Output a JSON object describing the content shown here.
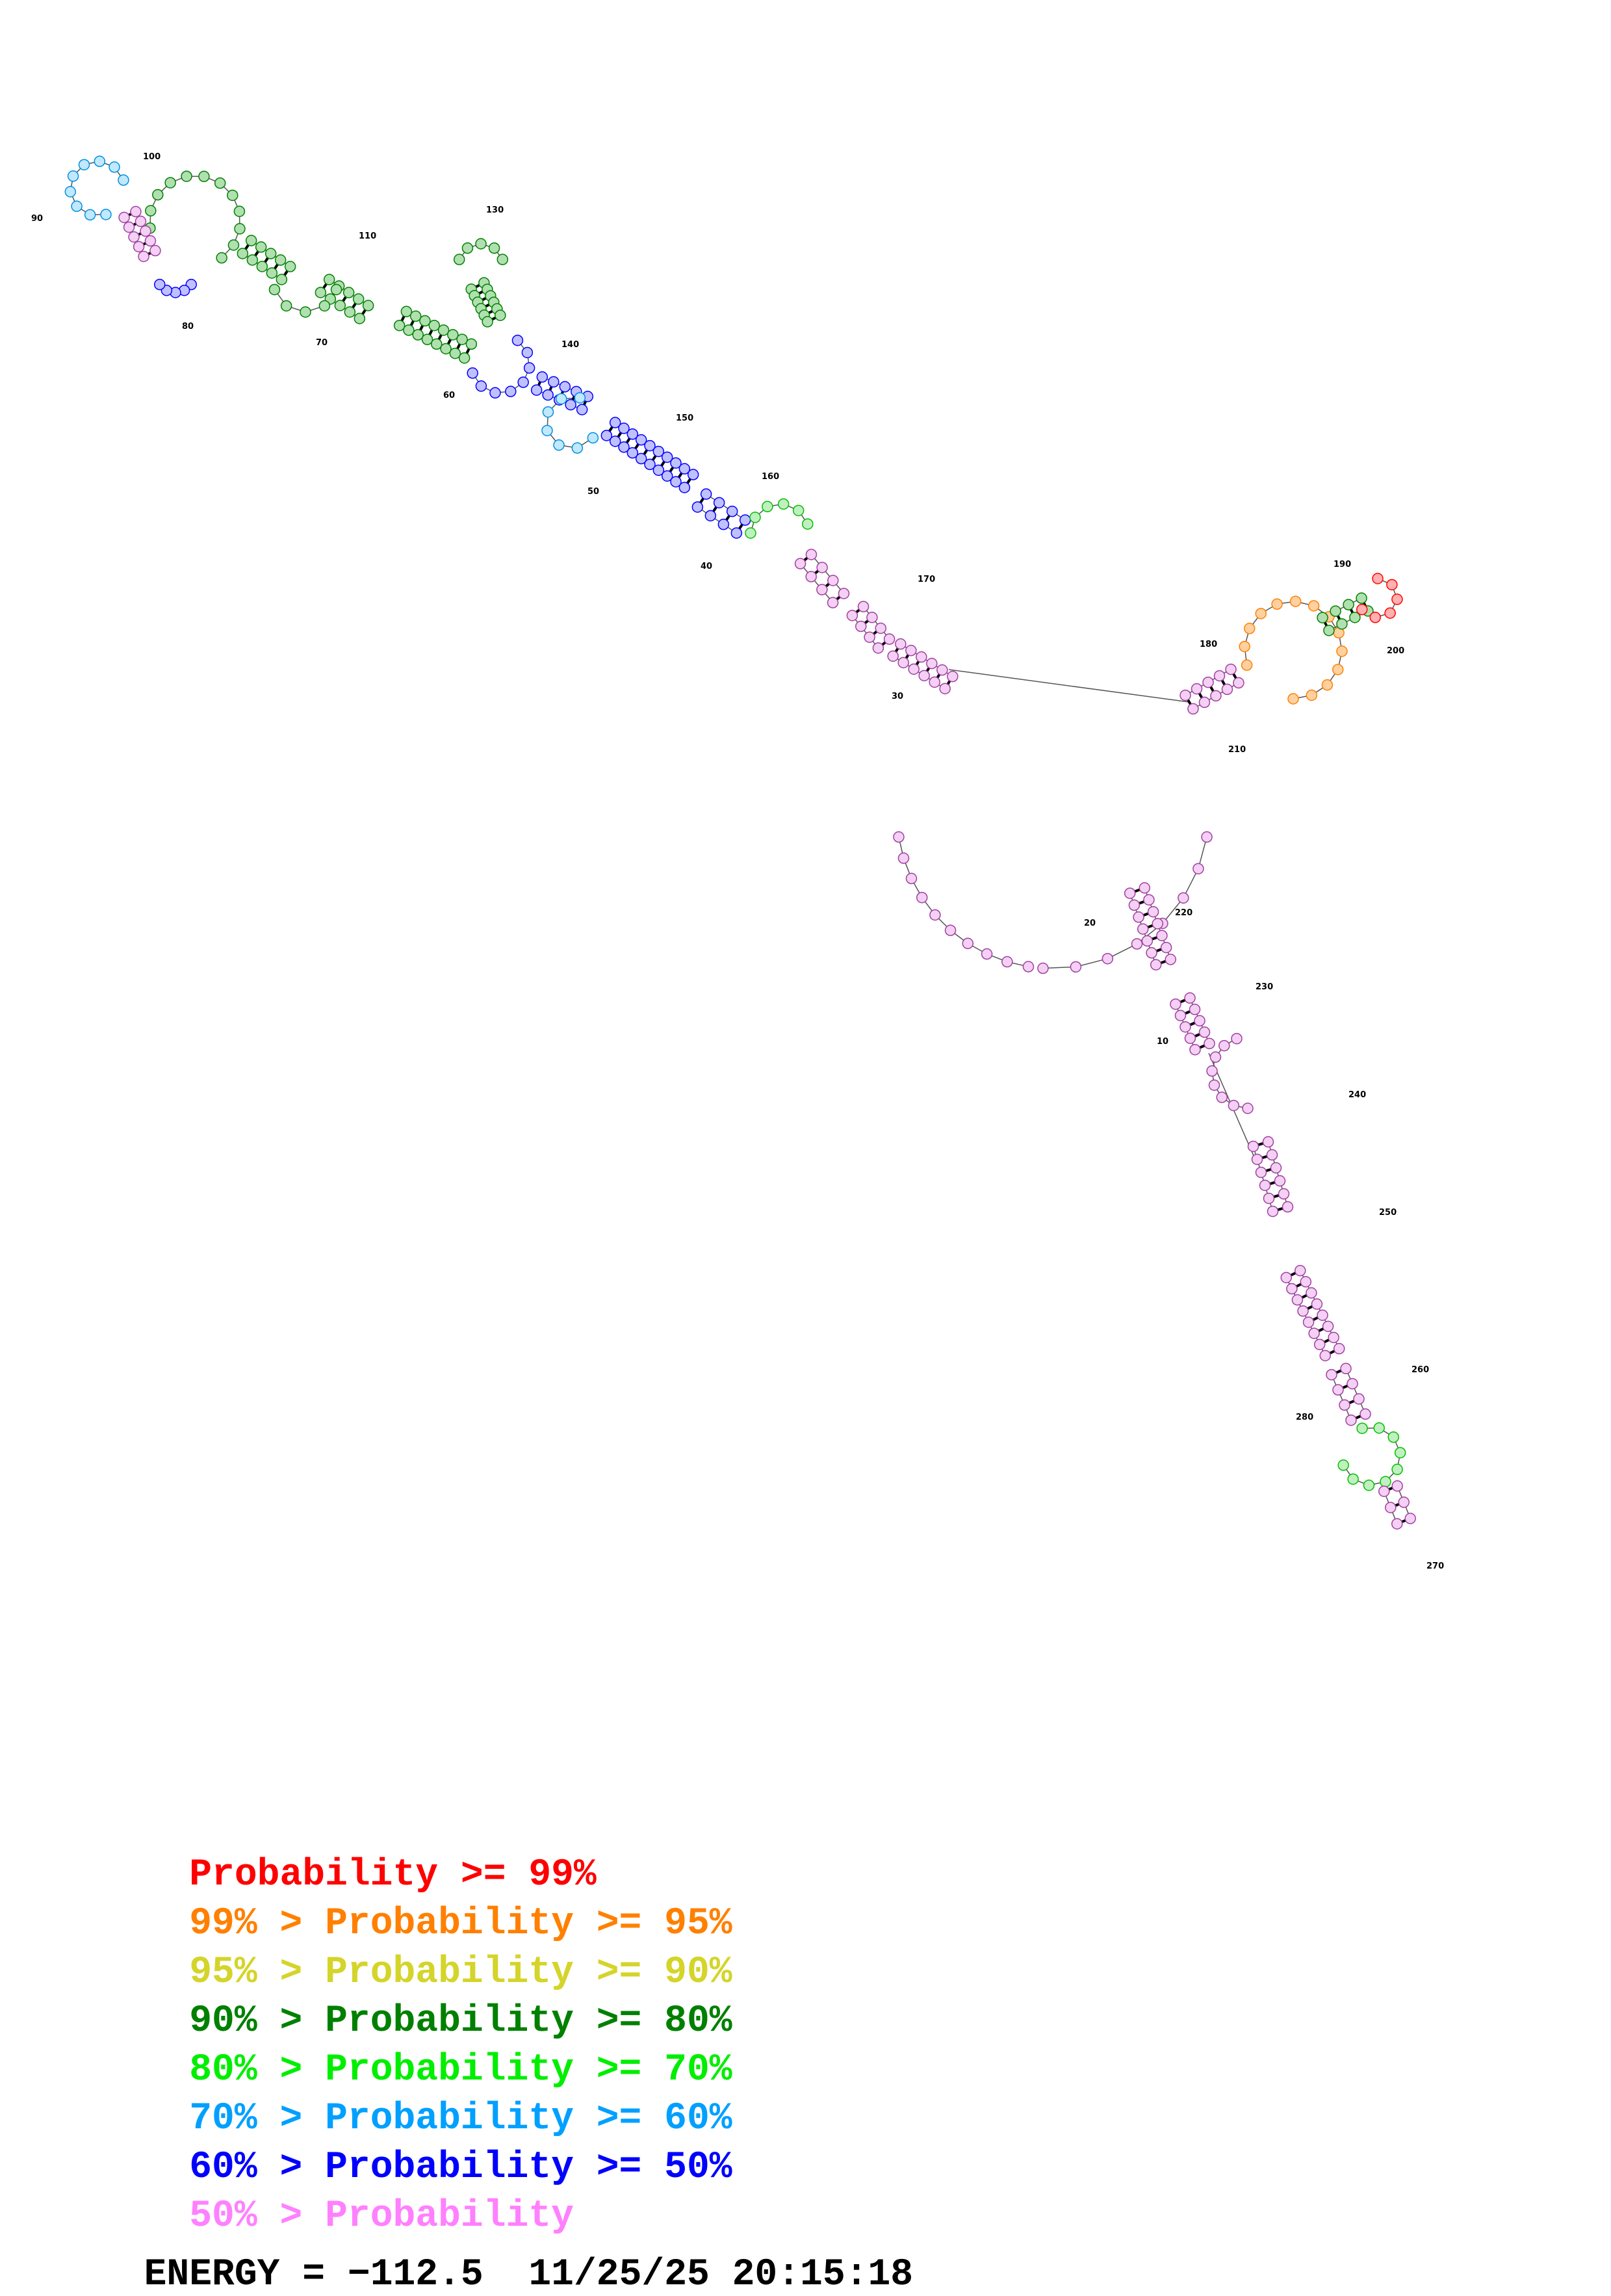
{
  "structure": {
    "tick_labels": [
      "10",
      "20",
      "30",
      "40",
      "50",
      "60",
      "70",
      "80",
      "90",
      "100",
      "110",
      "130",
      "140",
      "150",
      "160",
      "170",
      "180",
      "190",
      "200",
      "210",
      "220",
      "230",
      "240",
      "250",
      "260",
      "270",
      "280"
    ]
  },
  "legend": [
    {
      "prefix": "",
      "text": "Probability >= 99%",
      "color": "#ff0000"
    },
    {
      "prefix": "99% > ",
      "text": "Probability >= 95%",
      "color": "#ff8000"
    },
    {
      "prefix": "95% > ",
      "text": "Probability >= 90%",
      "color": "#d4d42a"
    },
    {
      "prefix": "90% > ",
      "text": "Probability >= 80%",
      "color": "#008000"
    },
    {
      "prefix": "80% > ",
      "text": "Probability >= 70%",
      "color": "#00ee00"
    },
    {
      "prefix": "70% > ",
      "text": "Probability >= 60%",
      "color": "#00a0ff"
    },
    {
      "prefix": "60% > ",
      "text": "Probability >= 50%",
      "color": "#0000ff"
    },
    {
      "prefix": "50% > ",
      "text": "Probability",
      "color": "#ff80ff"
    }
  ],
  "energy_label": "ENERGY = ",
  "energy_value": "−112.5",
  "timestamp": "11/25/25 20:15:18",
  "fill_colors": {
    "p99": "#ffb0b0",
    "p95": "#ffd0a0",
    "p90": "#f0f0a0",
    "p80": "#b0e0b0",
    "p70": "#c0f0c0",
    "p60": "#c0e8ff",
    "p50": "#c0c0ff",
    "plt50": "#f4d0f4"
  }
}
